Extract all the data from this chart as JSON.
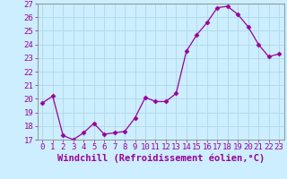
{
  "x": [
    0,
    1,
    2,
    3,
    4,
    5,
    6,
    7,
    8,
    9,
    10,
    11,
    12,
    13,
    14,
    15,
    16,
    17,
    18,
    19,
    20,
    21,
    22,
    23
  ],
  "y": [
    19.7,
    20.2,
    17.3,
    17.0,
    17.5,
    18.2,
    17.4,
    17.5,
    17.6,
    18.6,
    20.1,
    19.8,
    19.8,
    20.4,
    23.5,
    24.7,
    25.6,
    26.7,
    26.8,
    26.2,
    25.3,
    24.0,
    23.1,
    23.3
  ],
  "xlim": [
    -0.5,
    23.5
  ],
  "ylim": [
    17,
    27
  ],
  "yticks": [
    17,
    18,
    19,
    20,
    21,
    22,
    23,
    24,
    25,
    26,
    27
  ],
  "xticks": [
    0,
    1,
    2,
    3,
    4,
    5,
    6,
    7,
    8,
    9,
    10,
    11,
    12,
    13,
    14,
    15,
    16,
    17,
    18,
    19,
    20,
    21,
    22,
    23
  ],
  "xlabel": "Windchill (Refroidissement éolien,°C)",
  "line_color": "#990099",
  "marker": "D",
  "marker_size": 2.5,
  "background_color": "#cceeff",
  "grid_color": "#b0d8e8",
  "tick_fontsize": 6.5,
  "xlabel_fontsize": 7.5,
  "xlabel_fontfamily": "monospace"
}
